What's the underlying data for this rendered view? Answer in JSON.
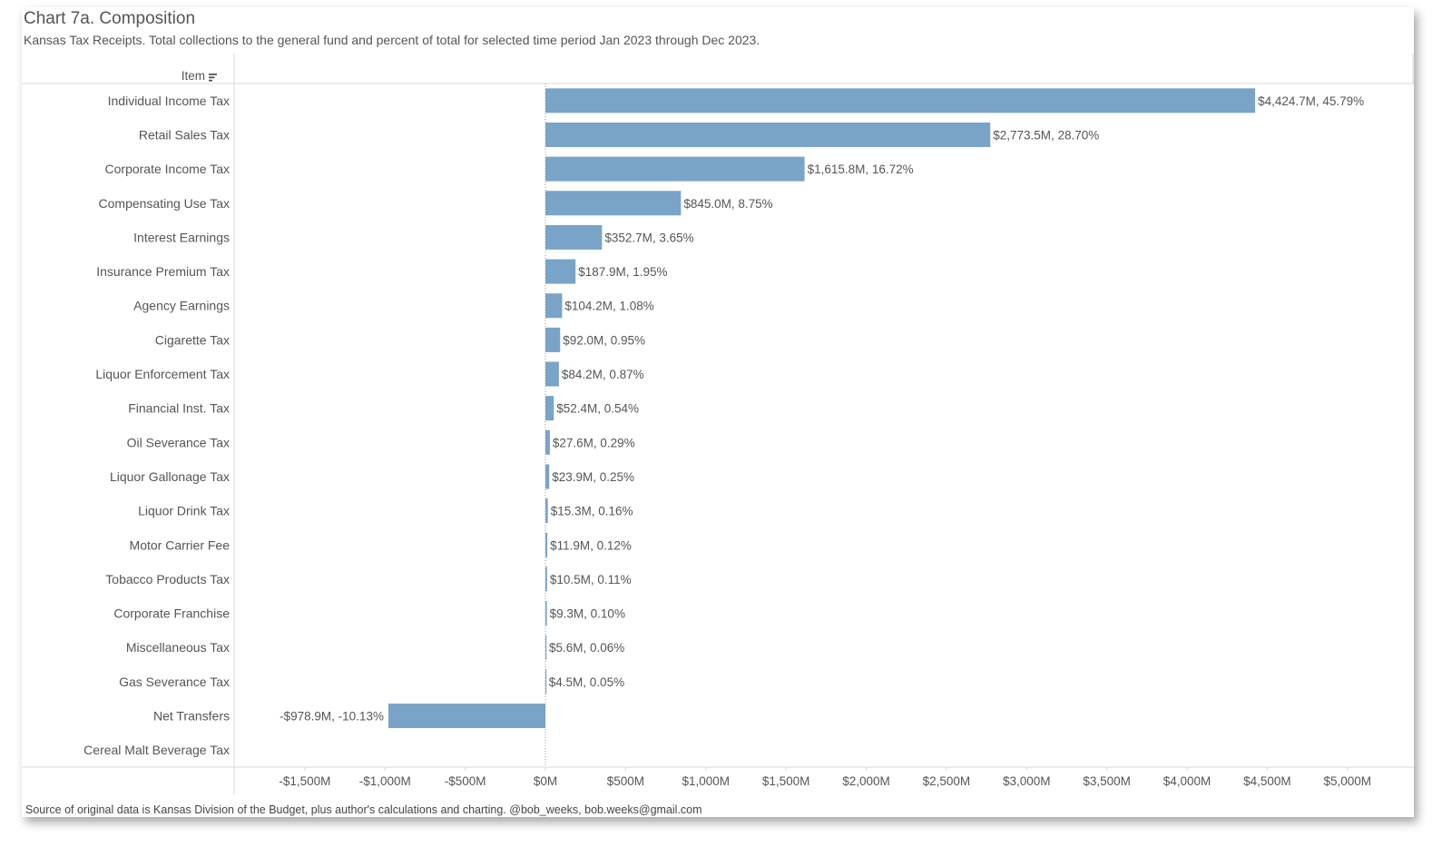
{
  "header": {
    "title": "Chart 7a. Composition",
    "subtitle": "Kansas Tax Receipts. Total collections to the general fund and percent of total for selected time period Jan 2023 through Dec 2023.",
    "column_header": "Item",
    "sort_icon": "sort-descending-icon"
  },
  "footer": {
    "source": "Source of original data is Kansas Division of the Budget, plus author's calculations and charting. @bob_weeks, bob.weeks@gmail.com"
  },
  "colors": {
    "bar": "#7AA3C8",
    "grid_line": "#d9d9d9",
    "zero_line": "#9a9a9a",
    "text": "#555555"
  },
  "chart_data": {
    "type": "bar",
    "orientation": "horizontal",
    "title": "Chart 7a. Composition",
    "xlabel": "",
    "ylabel": "Item",
    "xlim": [
      -1950,
      5250
    ],
    "x_ticks": [
      {
        "value": -1500,
        "label": "-$1,500M"
      },
      {
        "value": -1000,
        "label": "-$1,000M"
      },
      {
        "value": -500,
        "label": "-$500M"
      },
      {
        "value": 0,
        "label": "$0M"
      },
      {
        "value": 500,
        "label": "$500M"
      },
      {
        "value": 1000,
        "label": "$1,000M"
      },
      {
        "value": 1500,
        "label": "$1,500M"
      },
      {
        "value": 2000,
        "label": "$2,000M"
      },
      {
        "value": 2500,
        "label": "$2,500M"
      },
      {
        "value": 3000,
        "label": "$3,000M"
      },
      {
        "value": 3500,
        "label": "$3,500M"
      },
      {
        "value": 4000,
        "label": "$4,000M"
      },
      {
        "value": 4500,
        "label": "$4,500M"
      },
      {
        "value": 5000,
        "label": "$5,000M"
      }
    ],
    "categories": [
      "Individual Income Tax",
      "Retail Sales Tax",
      "Corporate Income Tax",
      "Compensating Use Tax",
      "Interest Earnings",
      "Insurance Premium Tax",
      "Agency Earnings",
      "Cigarette Tax",
      "Liquor Enforcement Tax",
      "Financial Inst. Tax",
      "Oil Severance Tax",
      "Liquor Gallonage Tax",
      "Liquor Drink Tax",
      "Motor Carrier Fee",
      "Tobacco Products Tax",
      "Corporate Franchise",
      "Miscellaneous Tax",
      "Gas Severance Tax",
      "Net Transfers",
      "Cereal Malt Beverage Tax"
    ],
    "values": [
      4424.7,
      2773.5,
      1615.8,
      845.0,
      352.7,
      187.9,
      104.2,
      92.0,
      84.2,
      52.4,
      27.6,
      23.9,
      15.3,
      11.9,
      10.5,
      9.3,
      5.6,
      4.5,
      -978.9,
      0.0
    ],
    "labels": [
      "$4,424.7M,  45.79%",
      "$2,773.5M,  28.70%",
      "$1,615.8M,  16.72%",
      "$845.0M,  8.75%",
      "$352.7M,  3.65%",
      "$187.9M,  1.95%",
      "$104.2M,  1.08%",
      "$92.0M,  0.95%",
      "$84.2M,  0.87%",
      "$52.4M,  0.54%",
      "$27.6M,  0.29%",
      "$23.9M,  0.25%",
      "$15.3M,  0.16%",
      "$11.9M,  0.12%",
      "$10.5M,  0.11%",
      "$9.3M,  0.10%",
      "$5.6M,  0.06%",
      "$4.5M,  0.05%",
      "-$978.9M,  -10.13%",
      ""
    ],
    "grid": false,
    "legend": "none"
  }
}
